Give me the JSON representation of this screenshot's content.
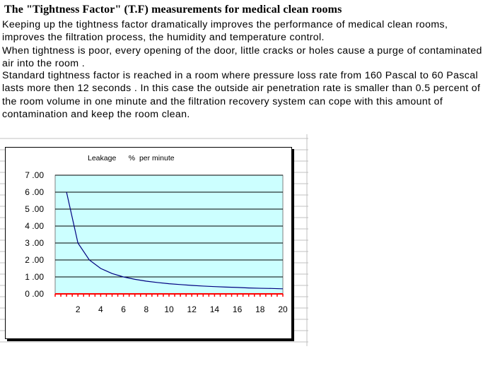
{
  "document": {
    "title": "The \"Tightness Factor\" (T.F)  measurements for medical clean rooms",
    "paragraph_1": "Keeping up the tightness factor dramatically improves the performance of medical clean rooms, improves the filtration process, the humidity and temperature control.",
    "paragraph_2": "When tightness is poor, every opening of the door, little cracks or holes cause a purge of contaminated air into  the room .",
    "paragraph_3": "Standard tightness factor is reached in  a room where pressure loss rate from 160 Pascal to 60 Pascal  lasts more then 12 seconds . In this case the outside air penetration rate is smaller than 0.5 percent of the room volume in one minute and the filtration recovery system can cope with this amount of contamination and keep the room clean."
  },
  "colors": {
    "plot_area": "#ccffff",
    "series_line": "#000080",
    "x_axis": "#ff0000",
    "gridline": "#000000",
    "sheet_grid": "#c0c0c0"
  },
  "chart_data": {
    "type": "line",
    "title": "Leakage      %  per minute",
    "x": [
      1,
      2,
      3,
      4,
      5,
      6,
      7,
      8,
      9,
      10,
      11,
      12,
      13,
      14,
      15,
      16,
      17,
      18,
      19,
      20
    ],
    "series": [
      {
        "values": [
          6.0,
          3.0,
          2.0,
          1.5,
          1.2,
          1.0,
          0.86,
          0.75,
          0.67,
          0.6,
          0.55,
          0.5,
          0.46,
          0.43,
          0.4,
          0.38,
          0.35,
          0.33,
          0.32,
          0.3
        ]
      }
    ],
    "xlim": [
      0,
      20
    ],
    "ylim": [
      0,
      7
    ],
    "x_ticks": [
      "2",
      "4",
      "6",
      "8",
      "10",
      "12",
      "14",
      "16",
      "18",
      "20"
    ],
    "y_ticks": [
      "0.00",
      "1.00",
      "2.00",
      "3.00",
      "4.00",
      "5.00",
      "6.00",
      "7.00"
    ],
    "grid": "horizontal",
    "legend": "none"
  }
}
